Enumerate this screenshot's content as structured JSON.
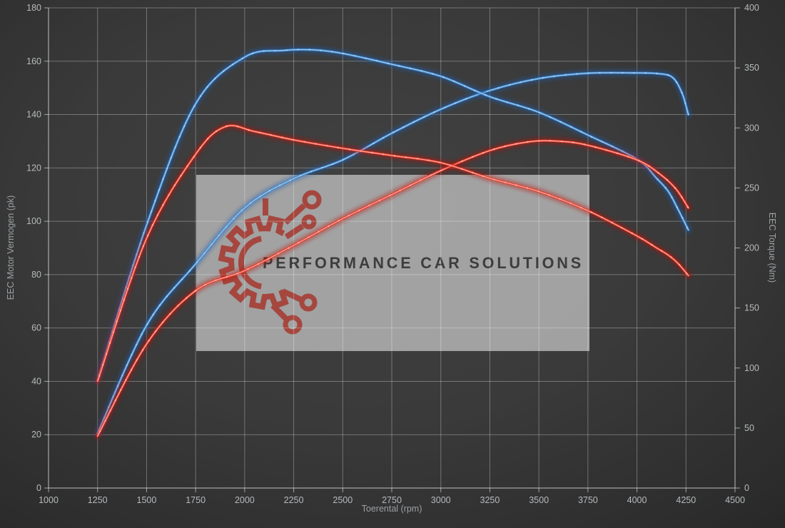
{
  "watermark": {
    "text": "PERFORMANCE CAR SOLUTIONS",
    "box_color": "#bcbcbc",
    "box_opacity": 0.8,
    "logo_color": "#a5473f",
    "text_color": "#3d3d3d",
    "logo_icon": "gear-circuit-icon"
  },
  "chart_data": {
    "type": "line",
    "title": "",
    "xlabel": "Toerental (rpm)",
    "ylabel_left": "EEC Motor Vermogen (pk)",
    "ylabel_right": "EEC Torque (Nm)",
    "grid": true,
    "legend": "none",
    "x_range": [
      1000,
      4500
    ],
    "y_left_range": [
      0,
      180
    ],
    "y_right_range": [
      0,
      400
    ],
    "x_ticks": [
      1000,
      1250,
      1500,
      1750,
      2000,
      2250,
      2500,
      2750,
      3000,
      3250,
      3500,
      3750,
      4000,
      4250,
      4500
    ],
    "y_left_ticks": [
      0,
      20,
      40,
      60,
      80,
      100,
      120,
      140,
      160,
      180
    ],
    "y_right_ticks": [
      0,
      50,
      100,
      150,
      200,
      250,
      300,
      350,
      400
    ],
    "series": [
      {
        "name": "power-blue",
        "axis": "left",
        "unit": "pk",
        "color": "#3f87cf",
        "core": "#a6d0f2",
        "glow": "#1a5fb4",
        "peak": {
          "value": 155.6,
          "rpm": 3900
        },
        "points": [
          [
            1250,
            20.5
          ],
          [
            1500,
            61
          ],
          [
            1750,
            84
          ],
          [
            2000,
            105
          ],
          [
            2250,
            116
          ],
          [
            2500,
            123
          ],
          [
            2750,
            133
          ],
          [
            3000,
            142
          ],
          [
            3250,
            149
          ],
          [
            3500,
            153.5
          ],
          [
            3750,
            155.5
          ],
          [
            4000,
            155.6
          ],
          [
            4100,
            155.4
          ],
          [
            4180,
            154
          ],
          [
            4230,
            148
          ],
          [
            4262,
            140
          ]
        ]
      },
      {
        "name": "torque-blue",
        "axis": "right",
        "unit": "Nm",
        "color": "#3f87cf",
        "core": "#a6d0f2",
        "glow": "#1a5fb4",
        "peak": {
          "value": 365,
          "rpm": 2350
        },
        "points": [
          [
            1250,
            90
          ],
          [
            1500,
            219
          ],
          [
            1750,
            320
          ],
          [
            2000,
            359
          ],
          [
            2200,
            364.5
          ],
          [
            2350,
            365
          ],
          [
            2500,
            362
          ],
          [
            2750,
            353
          ],
          [
            3000,
            343
          ],
          [
            3250,
            326
          ],
          [
            3500,
            313
          ],
          [
            3750,
            294
          ],
          [
            4000,
            274
          ],
          [
            4100,
            258
          ],
          [
            4160,
            247
          ],
          [
            4210,
            232
          ],
          [
            4262,
            215
          ]
        ]
      },
      {
        "name": "power-red",
        "axis": "left",
        "unit": "pk",
        "color": "#e8382a",
        "core": "#ffb4a8",
        "glow": "#c00d06",
        "peak": {
          "value": 130,
          "rpm": 3550
        },
        "points": [
          [
            1250,
            19.5
          ],
          [
            1500,
            54
          ],
          [
            1750,
            74
          ],
          [
            2000,
            81.5
          ],
          [
            2250,
            91
          ],
          [
            2500,
            101
          ],
          [
            2750,
            110
          ],
          [
            3000,
            119
          ],
          [
            3250,
            126.5
          ],
          [
            3450,
            129.8
          ],
          [
            3600,
            130
          ],
          [
            3750,
            128.5
          ],
          [
            4000,
            123
          ],
          [
            4120,
            117.5
          ],
          [
            4200,
            112
          ],
          [
            4262,
            105
          ]
        ]
      },
      {
        "name": "torque-red",
        "axis": "right",
        "unit": "Nm",
        "color": "#e8382a",
        "core": "#ffb4a8",
        "glow": "#c00d06",
        "peak": {
          "value": 301,
          "rpm": 1900
        },
        "points": [
          [
            1250,
            89
          ],
          [
            1500,
            208
          ],
          [
            1750,
            278
          ],
          [
            1900,
            301
          ],
          [
            2050,
            297
          ],
          [
            2250,
            290
          ],
          [
            2500,
            283
          ],
          [
            2750,
            277
          ],
          [
            3000,
            271
          ],
          [
            3250,
            258
          ],
          [
            3500,
            247
          ],
          [
            3750,
            231
          ],
          [
            4000,
            210
          ],
          [
            4100,
            200
          ],
          [
            4160,
            194
          ],
          [
            4210,
            187
          ],
          [
            4262,
            177
          ]
        ]
      }
    ]
  }
}
